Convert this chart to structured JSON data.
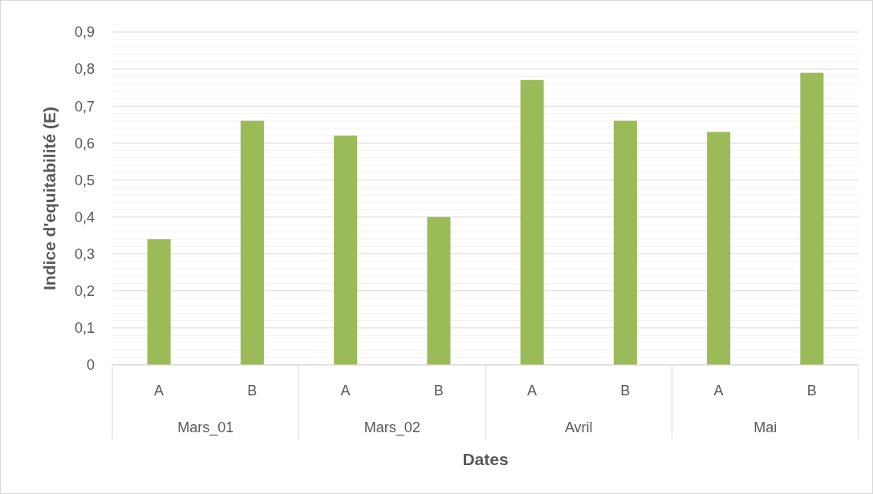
{
  "chart_data": {
    "type": "bar",
    "xlabel": "Dates",
    "ylabel": "Indice d'equitabilité (E)",
    "categories": [
      "A",
      "B",
      "A",
      "B",
      "A",
      "B",
      "A",
      "B"
    ],
    "annotations": [
      "Mars_01",
      "Mars_02",
      "Avril",
      "Mai"
    ],
    "values": [
      0.34,
      0.66,
      0.62,
      0.4,
      0.77,
      0.66,
      0.63,
      0.79
    ],
    "color": "#9bbb59",
    "ylim": [
      0,
      0.9
    ],
    "yticks": [
      {
        "value": 0,
        "label": "0"
      },
      {
        "value": 0.02,
        "label": null
      },
      {
        "value": 0.04,
        "label": null
      },
      {
        "value": 0.06,
        "label": null
      },
      {
        "value": 0.08,
        "label": null
      },
      {
        "value": 0.1,
        "label": "0,1"
      },
      {
        "value": 0.12,
        "label": null
      },
      {
        "value": 0.14,
        "label": null
      },
      {
        "value": 0.16,
        "label": null
      },
      {
        "value": 0.18,
        "label": null
      },
      {
        "value": 0.2,
        "label": "0,2"
      },
      {
        "value": 0.22,
        "label": null
      },
      {
        "value": 0.24,
        "label": null
      },
      {
        "value": 0.26,
        "label": null
      },
      {
        "value": 0.28,
        "label": null
      },
      {
        "value": 0.3,
        "label": "0,3"
      },
      {
        "value": 0.32,
        "label": null
      },
      {
        "value": 0.34,
        "label": null
      },
      {
        "value": 0.36,
        "label": null
      },
      {
        "value": 0.38,
        "label": null
      },
      {
        "value": 0.4,
        "label": "0,4"
      },
      {
        "value": 0.42,
        "label": null
      },
      {
        "value": 0.44,
        "label": null
      },
      {
        "value": 0.46,
        "label": null
      },
      {
        "value": 0.48,
        "label": null
      },
      {
        "value": 0.5,
        "label": "0,5"
      },
      {
        "value": 0.52,
        "label": null
      },
      {
        "value": 0.54,
        "label": null
      },
      {
        "value": 0.56,
        "label": null
      },
      {
        "value": 0.58,
        "label": null
      },
      {
        "value": 0.6,
        "label": "0,6"
      },
      {
        "value": 0.62,
        "label": null
      },
      {
        "value": 0.64,
        "label": null
      },
      {
        "value": 0.66,
        "label": null
      },
      {
        "value": 0.68,
        "label": null
      },
      {
        "value": 0.7,
        "label": "0,7"
      },
      {
        "value": 0.72,
        "label": null
      },
      {
        "value": 0.74,
        "label": null
      },
      {
        "value": 0.76,
        "label": null
      },
      {
        "value": 0.78,
        "label": null
      },
      {
        "value": 0.8,
        "label": "0,8"
      },
      {
        "value": 0.82,
        "label": null
      },
      {
        "value": 0.84,
        "label": null
      },
      {
        "value": 0.86,
        "label": null
      },
      {
        "value": 0.88,
        "label": null
      },
      {
        "value": 0.9,
        "label": "0,9"
      }
    ],
    "grid": true
  }
}
